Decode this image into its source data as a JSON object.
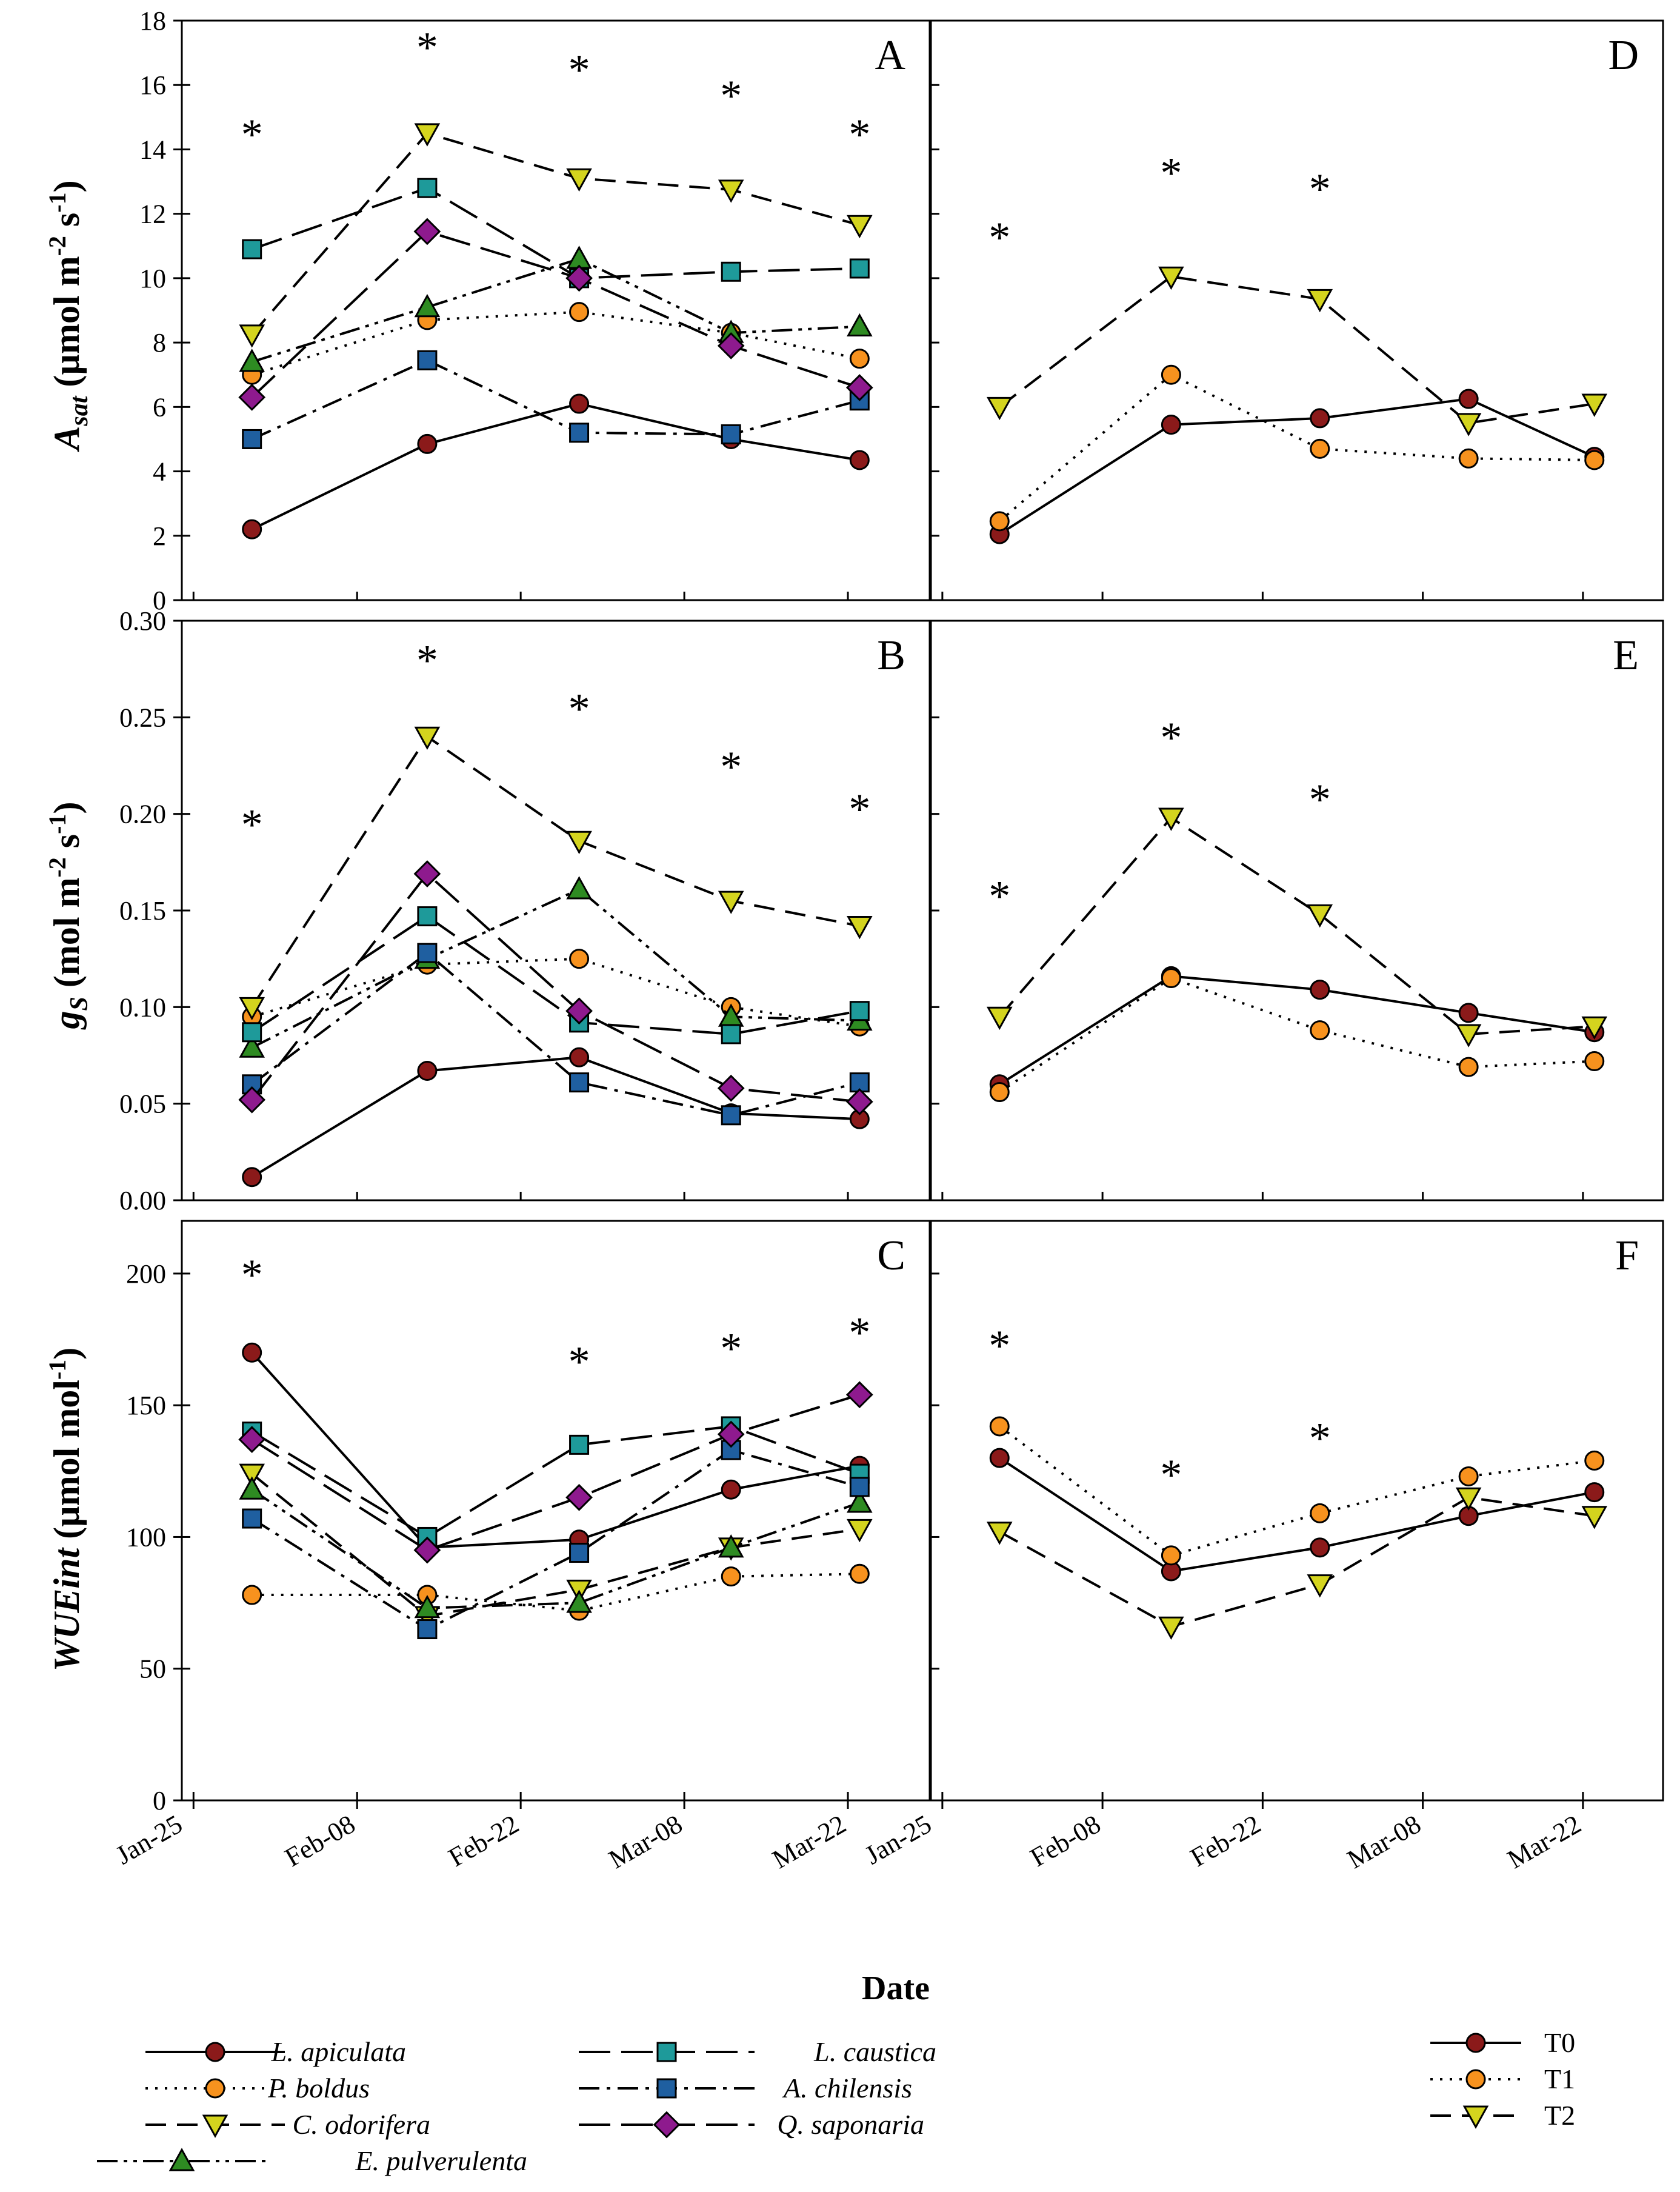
{
  "figure": {
    "x_title": "Date",
    "x_tick_labels": [
      "Jan-25",
      "Feb-08",
      "Feb-22",
      "Mar-08",
      "Mar-22"
    ],
    "right_first_tick_label": "Jan-25",
    "ylabels": {
      "asat": {
        "main": "A",
        "sub": "sat",
        "units": " (µmol m",
        "exp": "-2",
        "mid": " s",
        "exp2": "-1",
        "close": ")"
      },
      "gs": {
        "main": "g",
        "sub": "S",
        "units": " (mol m",
        "exp": "-2",
        "mid": " s",
        "exp2": "-1",
        "close": ")"
      },
      "wue": {
        "main": "WUEint",
        "units": " (µmol mol",
        "exp": "-1",
        "close": ")"
      }
    }
  },
  "chart_data": [
    {
      "panel": "A",
      "type": "line",
      "xlabel": "Date",
      "ylabel": "Asat (µmol m-2 s-1)",
      "x_days": [
        5,
        20,
        33,
        46,
        57
      ],
      "ylim": [
        0,
        18
      ],
      "yticks": [
        0,
        2,
        4,
        6,
        8,
        10,
        12,
        14,
        16,
        18
      ],
      "ytick_labels": [
        "0",
        "2",
        "4",
        "6",
        "8",
        "10",
        "12",
        "14",
        "16",
        "18"
      ],
      "significance": [
        "*",
        "*",
        "*",
        "*",
        "*"
      ],
      "significance_y": [
        14.5,
        17.2,
        16.5,
        15.7,
        14.5
      ],
      "series": [
        {
          "name": "L. apiculata",
          "values": [
            2.2,
            4.85,
            6.1,
            5.0,
            4.35
          ]
        },
        {
          "name": "P. boldus",
          "values": [
            7.0,
            8.7,
            8.95,
            8.3,
            7.5
          ]
        },
        {
          "name": "C. odorifera",
          "values": [
            8.25,
            14.5,
            13.1,
            12.75,
            11.65
          ]
        },
        {
          "name": "E. pulverulenta",
          "values": [
            7.4,
            9.1,
            10.6,
            8.3,
            8.5
          ]
        },
        {
          "name": "L. caustica",
          "values": [
            10.9,
            12.8,
            10.0,
            10.2,
            10.3
          ]
        },
        {
          "name": "A. chilensis",
          "values": [
            5.0,
            7.45,
            5.2,
            5.15,
            6.2
          ]
        },
        {
          "name": "Q. saponaria",
          "values": [
            6.3,
            11.45,
            10.0,
            7.9,
            6.6
          ]
        }
      ]
    },
    {
      "panel": "B",
      "type": "line",
      "xlabel": "Date",
      "ylabel": "gS (mol m-2 s-1)",
      "x_days": [
        5,
        20,
        33,
        46,
        57
      ],
      "ylim": [
        0,
        0.3
      ],
      "yticks": [
        0,
        0.05,
        0.1,
        0.15,
        0.2,
        0.25,
        0.3
      ],
      "ytick_labels": [
        "0.00",
        "0.05",
        "0.10",
        "0.15",
        "0.20",
        "0.25",
        "0.30"
      ],
      "significance": [
        "*",
        "*",
        "*",
        "*",
        "*"
      ],
      "significance_y": [
        0.195,
        0.28,
        0.255,
        0.225,
        0.203
      ],
      "series": [
        {
          "name": "L. apiculata",
          "values": [
            0.012,
            0.067,
            0.074,
            0.045,
            0.042
          ]
        },
        {
          "name": "P. boldus",
          "values": [
            0.095,
            0.122,
            0.125,
            0.1,
            0.09
          ]
        },
        {
          "name": "C. odorifera",
          "values": [
            0.1,
            0.24,
            0.186,
            0.155,
            0.142
          ]
        },
        {
          "name": "E. pulverulenta",
          "values": [
            0.079,
            0.125,
            0.161,
            0.095,
            0.093
          ]
        },
        {
          "name": "L. caustica",
          "values": [
            0.087,
            0.147,
            0.092,
            0.086,
            0.098
          ]
        },
        {
          "name": "A. chilensis",
          "values": [
            0.06,
            0.128,
            0.061,
            0.044,
            0.061
          ]
        },
        {
          "name": "Q. saponaria",
          "values": [
            0.052,
            0.169,
            0.098,
            0.058,
            0.051
          ]
        }
      ]
    },
    {
      "panel": "C",
      "type": "line",
      "xlabel": "Date",
      "ylabel": "WUEint (µmol mol-1)",
      "x_days": [
        5,
        20,
        33,
        46,
        57
      ],
      "ylim": [
        0,
        220
      ],
      "yticks": [
        0,
        50,
        100,
        150,
        200
      ],
      "ytick_labels": [
        "0",
        "50",
        "100",
        "150",
        "200"
      ],
      "significance": [
        "*",
        "",
        "*",
        "*",
        "*"
      ],
      "significance_y": [
        200,
        null,
        167,
        172,
        178
      ],
      "series": [
        {
          "name": "L. apiculata",
          "values": [
            170,
            96,
            99,
            118,
            127
          ]
        },
        {
          "name": "P. boldus",
          "values": [
            78,
            78,
            72,
            85,
            86
          ]
        },
        {
          "name": "C. odorifera",
          "values": [
            124,
            70,
            80,
            96,
            103
          ]
        },
        {
          "name": "E. pulverulenta",
          "values": [
            118,
            73,
            75,
            96,
            113
          ]
        },
        {
          "name": "L. caustica",
          "values": [
            140,
            100,
            135,
            142,
            124
          ]
        },
        {
          "name": "A. chilensis",
          "values": [
            107,
            65,
            94,
            133,
            119
          ]
        },
        {
          "name": "Q. saponaria",
          "values": [
            137,
            95,
            115,
            139,
            154
          ]
        }
      ]
    },
    {
      "panel": "D",
      "type": "line",
      "xlabel": "Date",
      "ylabel": "Asat",
      "x_days": [
        5,
        20,
        33,
        46,
        57
      ],
      "ylim": [
        0,
        18
      ],
      "significance": [
        "*",
        "*",
        "*",
        "",
        ""
      ],
      "significance_y": [
        11.3,
        13.3,
        12.8,
        null,
        null
      ],
      "series": [
        {
          "name": "T0",
          "values": [
            2.05,
            5.45,
            5.65,
            6.25,
            4.45
          ]
        },
        {
          "name": "T1",
          "values": [
            2.45,
            7.0,
            4.7,
            4.4,
            4.35
          ]
        },
        {
          "name": "T2",
          "values": [
            6.0,
            10.05,
            9.35,
            5.5,
            6.1
          ]
        }
      ]
    },
    {
      "panel": "E",
      "type": "line",
      "xlabel": "Date",
      "ylabel": "gS",
      "x_days": [
        5,
        20,
        33,
        46,
        57
      ],
      "ylim": [
        0,
        0.3
      ],
      "significance": [
        "*",
        "*",
        "*",
        "",
        ""
      ],
      "significance_y": [
        0.158,
        0.24,
        0.208,
        null,
        null
      ],
      "series": [
        {
          "name": "T0",
          "values": [
            0.06,
            0.116,
            0.109,
            0.097,
            0.087
          ]
        },
        {
          "name": "T1",
          "values": [
            0.056,
            0.115,
            0.088,
            0.069,
            0.072
          ]
        },
        {
          "name": "T2",
          "values": [
            0.095,
            0.198,
            0.148,
            0.086,
            0.09
          ]
        }
      ]
    },
    {
      "panel": "F",
      "type": "line",
      "xlabel": "Date",
      "ylabel": "WUEint",
      "x_days": [
        5,
        20,
        33,
        46,
        57
      ],
      "ylim": [
        0,
        220
      ],
      "significance": [
        "*",
        "*",
        "*",
        "",
        ""
      ],
      "significance_y": [
        173,
        124,
        138,
        null,
        null
      ],
      "series": [
        {
          "name": "T0",
          "values": [
            130,
            87,
            96,
            108,
            117
          ]
        },
        {
          "name": "T1",
          "values": [
            142,
            93,
            109,
            123,
            129
          ]
        },
        {
          "name": "T2",
          "values": [
            102,
            66,
            82,
            115,
            108
          ]
        }
      ]
    }
  ],
  "legend_species": [
    {
      "name": "L. apiculata",
      "color": "#8B1A1A",
      "marker": "circle",
      "dash": "solid"
    },
    {
      "name": "P. boldus",
      "color": "#F7921E",
      "marker": "circle",
      "dash": "dot"
    },
    {
      "name": "C. odorifera",
      "color": "#D4D41E",
      "marker": "triangle-down",
      "dash": "dash"
    },
    {
      "name": "E. pulverulenta",
      "color": "#2E8B22",
      "marker": "triangle-up",
      "dash": "dash-dot-dot"
    },
    {
      "name": "L. caustica",
      "color": "#1E9A9A",
      "marker": "square",
      "dash": "long-dash"
    },
    {
      "name": "A. chilensis",
      "color": "#1F5FA0",
      "marker": "square",
      "dash": "dash-dot"
    },
    {
      "name": "Q. saponaria",
      "color": "#8E1A8E",
      "marker": "diamond",
      "dash": "long-dash"
    }
  ],
  "legend_treatments": [
    {
      "name": "T0",
      "color": "#8B1A1A",
      "marker": "circle",
      "dash": "solid"
    },
    {
      "name": "T1",
      "color": "#F7921E",
      "marker": "circle",
      "dash": "dot"
    },
    {
      "name": "T2",
      "color": "#D4D41E",
      "marker": "triangle-down",
      "dash": "dash"
    }
  ]
}
